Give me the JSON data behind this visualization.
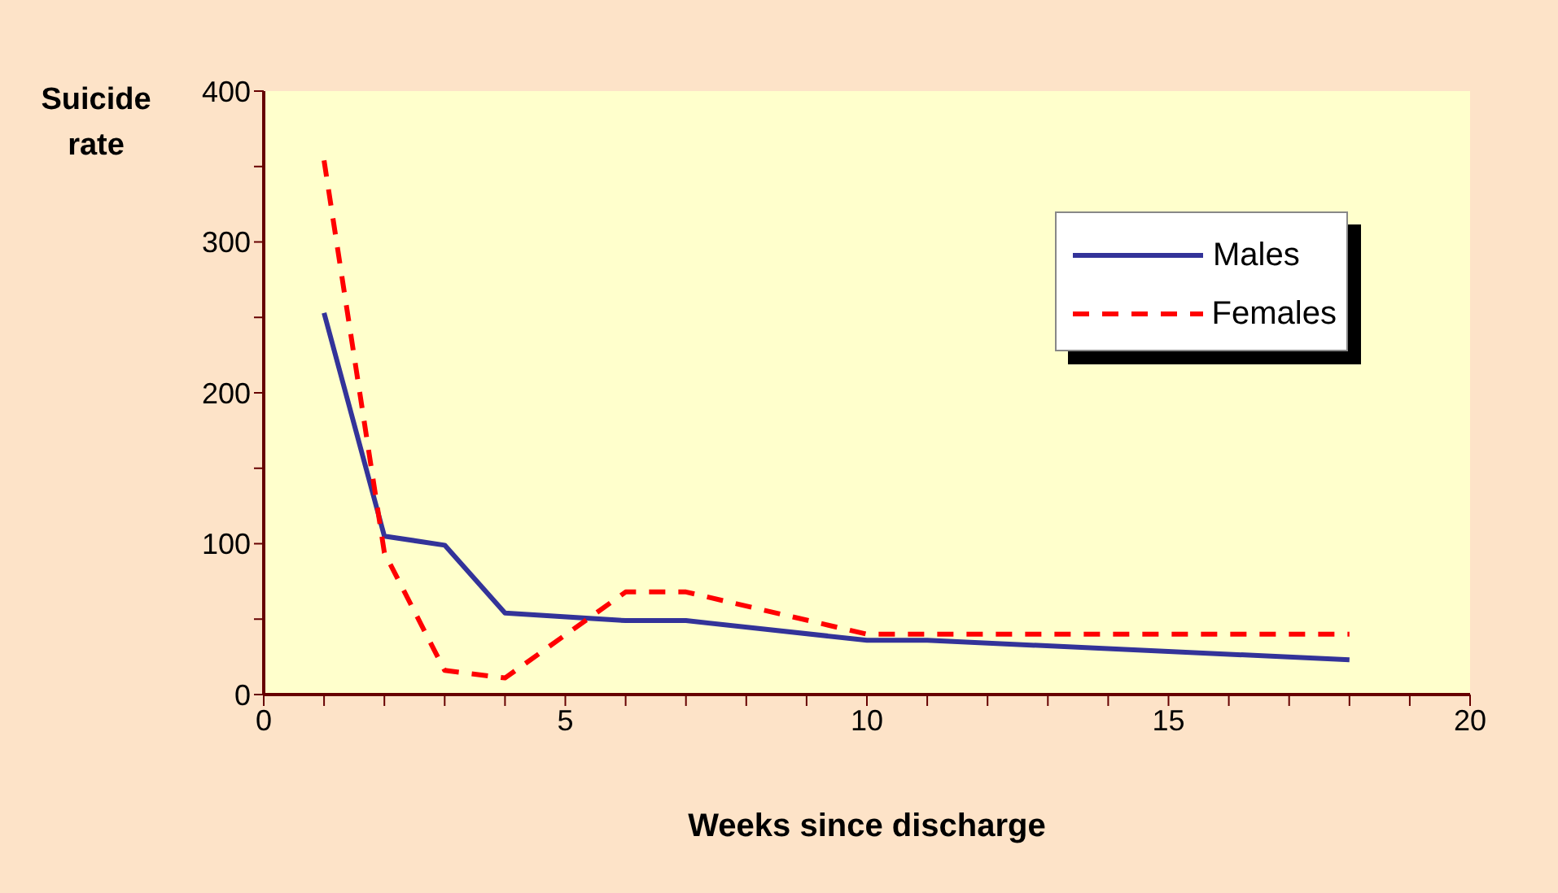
{
  "chart_data": {
    "type": "line",
    "xlabel": "Weeks since discharge",
    "ylabel": "Suicide rate",
    "x": [
      1,
      2,
      3,
      4,
      6,
      7,
      10,
      11,
      18
    ],
    "series": [
      {
        "name": "Males",
        "color": "#333399",
        "line_style": "solid",
        "values": [
          253,
          105,
          99,
          54,
          49,
          49,
          36,
          36,
          23
        ]
      },
      {
        "name": "Females",
        "color": "#ff0000",
        "line_style": "dashed",
        "values": [
          354,
          94,
          16,
          11,
          68,
          68,
          40,
          40,
          40
        ]
      }
    ],
    "xlim": [
      0,
      20
    ],
    "xticks": [
      0,
      {
        "value": 1,
        "label": null
      },
      {
        "value": 2,
        "label": null
      },
      {
        "value": 3,
        "label": null
      },
      {
        "value": 4,
        "label": null
      },
      5,
      {
        "value": 6,
        "label": null
      },
      {
        "value": 7,
        "label": null
      },
      {
        "value": 8,
        "label": null
      },
      {
        "value": 9,
        "label": null
      },
      10,
      {
        "value": 11,
        "label": null
      },
      {
        "value": 12,
        "label": null
      },
      {
        "value": 13,
        "label": null
      },
      {
        "value": 14,
        "label": null
      },
      15,
      {
        "value": 16,
        "label": null
      },
      {
        "value": 17,
        "label": null
      },
      {
        "value": 18,
        "label": null
      },
      {
        "value": 19,
        "label": null
      },
      20
    ],
    "ylim": [
      0,
      400
    ],
    "yticks": [
      0,
      {
        "value": 50,
        "label": null
      },
      100,
      {
        "value": 150,
        "label": null
      },
      200,
      {
        "value": 250,
        "label": null
      },
      300,
      {
        "value": 350,
        "label": null
      },
      400
    ],
    "marker": "none",
    "legend": "top right",
    "grid": false
  }
}
